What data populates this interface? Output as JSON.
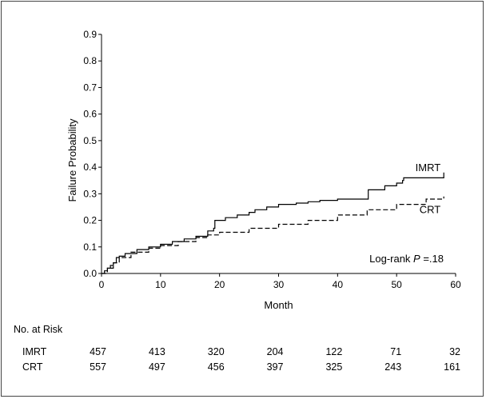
{
  "chart_data": {
    "type": "line",
    "title": "",
    "xlabel": "Month",
    "ylabel": "Failure Probability",
    "xlim": [
      0,
      60
    ],
    "ylim": [
      0,
      0.9
    ],
    "x_ticks": [
      "0",
      "10",
      "20",
      "30",
      "40",
      "50",
      "60"
    ],
    "y_ticks": [
      "0.0",
      "0.1",
      "0.2",
      "0.3",
      "0.4",
      "0.5",
      "0.6",
      "0.7",
      "0.8",
      "0.9"
    ],
    "grid": false,
    "legend": "direct labels at line ends (right)",
    "annotation": {
      "text": "Log-rank ",
      "italic": "P",
      "value": " =.18"
    },
    "series": [
      {
        "name": "IMRT",
        "style": "solid",
        "color": "#000000",
        "points": [
          [
            0,
            0
          ],
          [
            0.5,
            0.01
          ],
          [
            1,
            0.02
          ],
          [
            1.5,
            0.03
          ],
          [
            2,
            0.04
          ],
          [
            2.5,
            0.06
          ],
          [
            3,
            0.065
          ],
          [
            4,
            0.075
          ],
          [
            6,
            0.09
          ],
          [
            8,
            0.1
          ],
          [
            10,
            0.11
          ],
          [
            12,
            0.12
          ],
          [
            14,
            0.13
          ],
          [
            16,
            0.14
          ],
          [
            18,
            0.16
          ],
          [
            19,
            0.17
          ],
          [
            19.2,
            0.2
          ],
          [
            21,
            0.21
          ],
          [
            23,
            0.22
          ],
          [
            25,
            0.23
          ],
          [
            26,
            0.24
          ],
          [
            28,
            0.25
          ],
          [
            30,
            0.26
          ],
          [
            33,
            0.265
          ],
          [
            35,
            0.27
          ],
          [
            37,
            0.275
          ],
          [
            40,
            0.28
          ],
          [
            43,
            0.28
          ],
          [
            45,
            0.28
          ],
          [
            45.2,
            0.315
          ],
          [
            48,
            0.33
          ],
          [
            50,
            0.34
          ],
          [
            51,
            0.35
          ],
          [
            51.2,
            0.36
          ],
          [
            58,
            0.36
          ],
          [
            58,
            0.38
          ]
        ]
      },
      {
        "name": "CRT",
        "style": "dashed",
        "color": "#000000",
        "points": [
          [
            0,
            0
          ],
          [
            1,
            0.02
          ],
          [
            2,
            0.04
          ],
          [
            3,
            0.06
          ],
          [
            5,
            0.08
          ],
          [
            8,
            0.095
          ],
          [
            10,
            0.105
          ],
          [
            13,
            0.12
          ],
          [
            16,
            0.135
          ],
          [
            18,
            0.145
          ],
          [
            20,
            0.155
          ],
          [
            25,
            0.17
          ],
          [
            30,
            0.185
          ],
          [
            35,
            0.2
          ],
          [
            40,
            0.22
          ],
          [
            45,
            0.24
          ],
          [
            50,
            0.26
          ],
          [
            55,
            0.28
          ],
          [
            58,
            0.29
          ]
        ]
      }
    ],
    "at_risk": {
      "title": "No. at Risk",
      "times": [
        0,
        10,
        20,
        30,
        40,
        50,
        60
      ],
      "rows": [
        {
          "name": "IMRT",
          "values": [
            "457",
            "413",
            "320",
            "204",
            "122",
            "71",
            "32"
          ]
        },
        {
          "name": "CRT",
          "values": [
            "557",
            "497",
            "456",
            "397",
            "325",
            "243",
            "161"
          ]
        }
      ]
    }
  }
}
